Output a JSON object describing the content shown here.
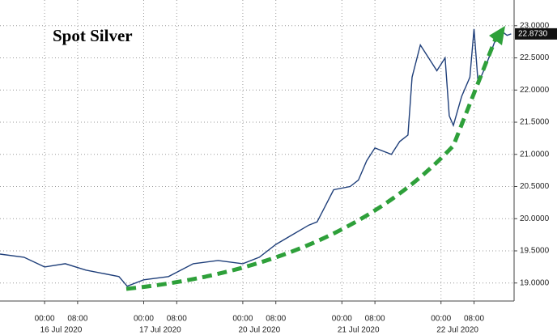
{
  "chart_data": {
    "type": "line",
    "title": "Spot Silver",
    "x": [
      -10.8,
      -5,
      0,
      5,
      10,
      14,
      18,
      20,
      24,
      30,
      36,
      42,
      48,
      52,
      56,
      60,
      64,
      66,
      68,
      70,
      74,
      76,
      78,
      80,
      84,
      86,
      88,
      89,
      91,
      93,
      95,
      97,
      98,
      99,
      101,
      103,
      104,
      105,
      107,
      109,
      111,
      112,
      113
    ],
    "series": [
      {
        "name": "Spot Silver",
        "color": "#1f3f7a",
        "values": [
          19.45,
          19.4,
          19.25,
          19.3,
          19.2,
          19.15,
          19.1,
          18.95,
          19.05,
          19.1,
          19.3,
          19.35,
          19.3,
          19.4,
          19.6,
          19.75,
          19.9,
          19.95,
          20.2,
          20.45,
          20.5,
          20.6,
          20.9,
          21.1,
          21.0,
          21.2,
          21.3,
          22.2,
          22.7,
          22.5,
          22.3,
          22.5,
          21.6,
          21.45,
          21.9,
          22.2,
          22.95,
          22.1,
          22.4,
          22.75,
          22.9,
          22.85,
          22.873
        ]
      }
    ],
    "last_value": {
      "value": 22.873,
      "label": "22.8730"
    },
    "xlim": [
      -10.8,
      113.7
    ],
    "xticks": [
      {
        "value": 0,
        "label": "00:00"
      },
      {
        "value": 8,
        "label": "08:00"
      },
      {
        "value": 24,
        "label": "00:00"
      },
      {
        "value": 32,
        "label": "08:00"
      },
      {
        "value": 48,
        "label": "00:00"
      },
      {
        "value": 56,
        "label": "08:00"
      },
      {
        "value": 72,
        "label": "00:00"
      },
      {
        "value": 80,
        "label": "08:00"
      },
      {
        "value": 96,
        "label": "00:00"
      },
      {
        "value": 104,
        "label": "08:00"
      }
    ],
    "date_ticks": [
      {
        "value": 4,
        "label": "16 Jul 2020"
      },
      {
        "value": 28,
        "label": "17 Jul 2020"
      },
      {
        "value": 52,
        "label": "20 Jul 2020"
      },
      {
        "value": 76,
        "label": "21 Jul 2020"
      },
      {
        "value": 100,
        "label": "22 Jul 2020"
      }
    ],
    "ylim": [
      18.72,
      23.4
    ],
    "yticks": [
      {
        "value": 19,
        "label": "19.0000"
      },
      {
        "value": 19.5,
        "label": "19.5000"
      },
      {
        "value": 20,
        "label": "20.0000"
      },
      {
        "value": 20.5,
        "label": "20.5000"
      },
      {
        "value": 21,
        "label": "21.0000"
      },
      {
        "value": 21.5,
        "label": "21.5000"
      },
      {
        "value": 22,
        "label": "22.0000"
      },
      {
        "value": 22.5,
        "label": "22.5000"
      },
      {
        "value": 23,
        "label": "23.0000"
      }
    ],
    "grid": true
  }
}
